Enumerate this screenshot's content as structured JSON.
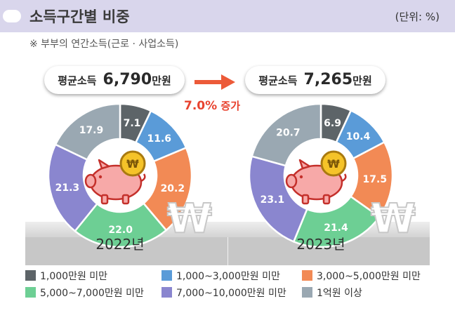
{
  "header": {
    "title": "소득구간별 비중",
    "unit": "(단위: %)"
  },
  "note": "※ 부부의 연간소득(근로 · 사업소득)",
  "growth": {
    "value": "7.0%",
    "label": "증가"
  },
  "colors": {
    "c1": "#5d6468",
    "c2": "#5a9bd8",
    "c3": "#f28a55",
    "c4": "#6dcf94",
    "c5": "#8a86cf",
    "c6": "#9aa8b2"
  },
  "chart_data": [
    {
      "type": "pie",
      "title": "2022년",
      "average": {
        "label": "평균소득",
        "value": "6,790",
        "unit": "만원"
      },
      "categories": [
        "1,000만원 미만",
        "1,000~3,000만원 미만",
        "3,000~5,000만원 미만",
        "5,000~7,000만원 미만",
        "7,000~10,000만원 미만",
        "1억원 이상"
      ],
      "values": [
        7.1,
        11.6,
        20.2,
        22.0,
        21.3,
        17.9
      ],
      "labels": [
        "7.1",
        "11.6",
        "20.2",
        "22.0",
        "21.3",
        "17.9"
      ]
    },
    {
      "type": "pie",
      "title": "2023년",
      "average": {
        "label": "평균소득",
        "value": "7,265",
        "unit": "만원"
      },
      "categories": [
        "1,000만원 미만",
        "1,000~3,000만원 미만",
        "3,000~5,000만원 미만",
        "5,000~7,000만원 미만",
        "7,000~10,000만원 미만",
        "1억원 이상"
      ],
      "values": [
        6.9,
        10.4,
        17.5,
        21.4,
        23.1,
        20.7
      ],
      "labels": [
        "6.9",
        "10.4",
        "17.5",
        "21.4",
        "23.1",
        "20.7"
      ]
    }
  ],
  "legend": [
    "1,000만원 미만",
    "1,000~3,000만원 미만",
    "3,000~5,000만원 미만",
    "5,000~7,000만원 미만",
    "7,000~10,000만원 미만",
    "1억원 이상"
  ]
}
